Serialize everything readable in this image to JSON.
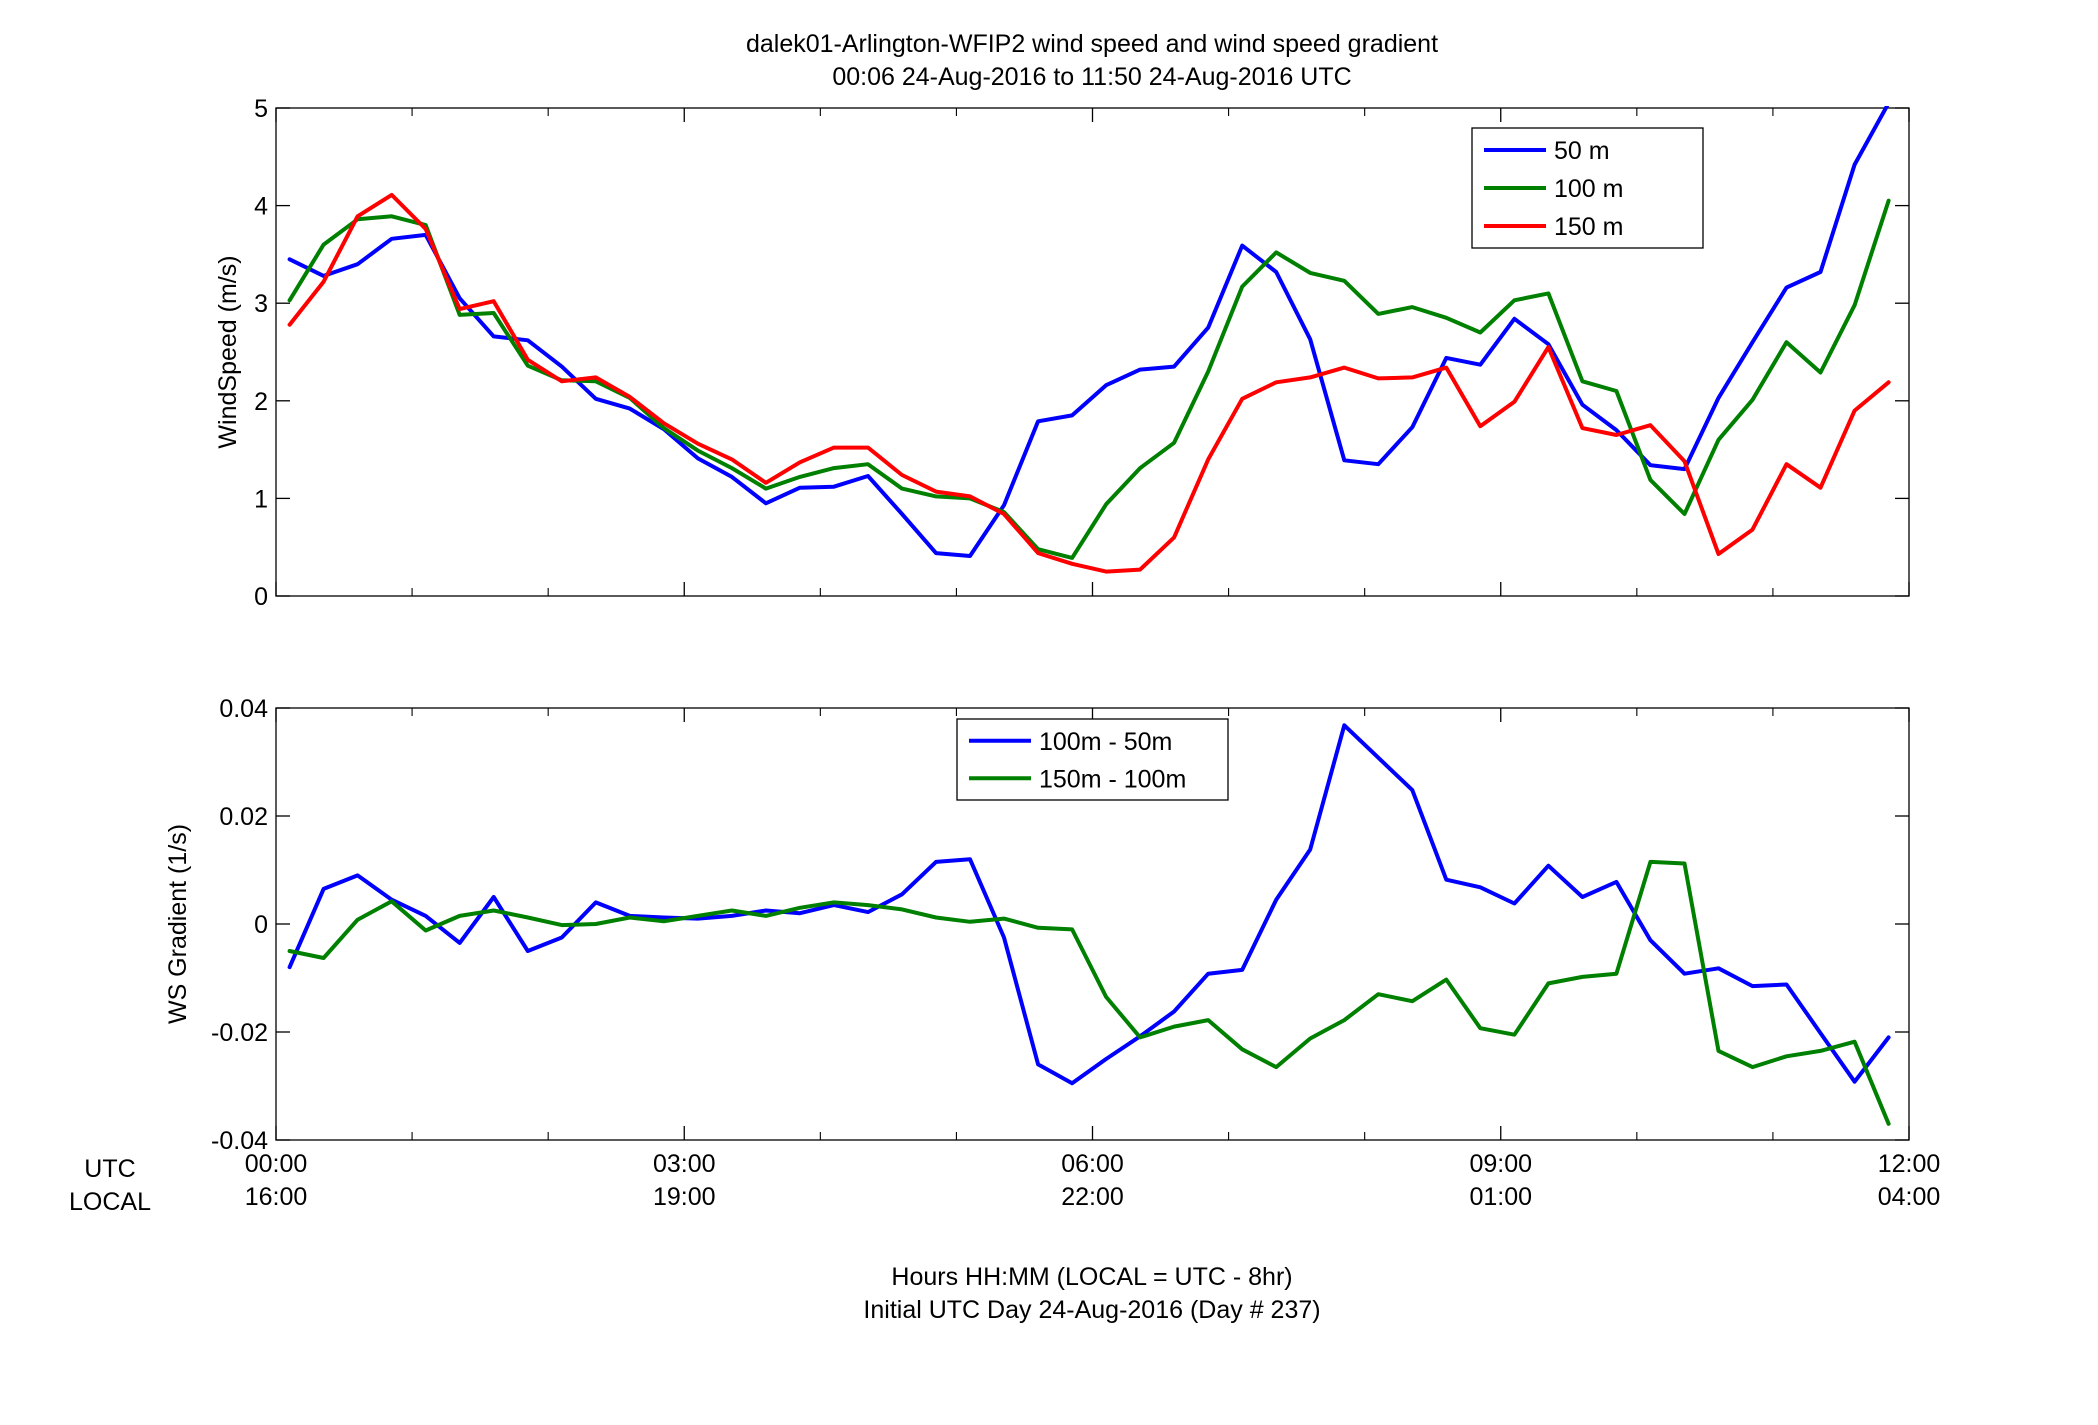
{
  "title": {
    "line1": "dalek01-Arlington-WFIP2  wind speed and wind speed gradient",
    "line2": "00:06 24-Aug-2016 to 11:50 24-Aug-2016  UTC"
  },
  "footer": {
    "row_label_utc": "UTC",
    "row_label_local": "LOCAL",
    "line1": "Hours HH:MM  (LOCAL = UTC - 8hr)",
    "line2": "Initial UTC Day 24-Aug-2016 (Day # 237)"
  },
  "x_ticks": [
    {
      "hour": 0,
      "utc": "00:00",
      "local": "16:00"
    },
    {
      "hour": 3,
      "utc": "03:00",
      "local": "19:00"
    },
    {
      "hour": 6,
      "utc": "06:00",
      "local": "22:00"
    },
    {
      "hour": 9,
      "utc": "09:00",
      "local": "01:00"
    },
    {
      "hour": 12,
      "utc": "12:00",
      "local": "04:00"
    }
  ],
  "chart_data": [
    {
      "type": "line",
      "ylabel": "WindSpeed (m/s)",
      "xlim": [
        0,
        12
      ],
      "ylim": [
        0,
        5
      ],
      "yticks": [
        0,
        1,
        2,
        3,
        4,
        5
      ],
      "ytick_labels": [
        "0",
        "1",
        "2",
        "3",
        "4",
        "5"
      ],
      "legend_position": "top-right",
      "x": [
        0.1,
        0.35,
        0.6,
        0.85,
        1.1,
        1.35,
        1.6,
        1.85,
        2.1,
        2.35,
        2.6,
        2.85,
        3.1,
        3.35,
        3.6,
        3.85,
        4.1,
        4.35,
        4.6,
        4.85,
        5.1,
        5.35,
        5.6,
        5.85,
        6.1,
        6.35,
        6.6,
        6.85,
        7.1,
        7.35,
        7.6,
        7.85,
        8.1,
        8.35,
        8.6,
        8.85,
        9.1,
        9.35,
        9.6,
        9.85,
        10.1,
        10.35,
        10.6,
        10.85,
        11.1,
        11.35,
        11.6,
        11.85
      ],
      "series": [
        {
          "name": "50 m",
          "color": "#0000ff",
          "values": [
            3.45,
            3.28,
            3.4,
            3.66,
            3.7,
            3.05,
            2.66,
            2.62,
            2.35,
            2.02,
            1.92,
            1.71,
            1.41,
            1.22,
            0.95,
            1.11,
            1.12,
            1.23,
            0.84,
            0.44,
            0.41,
            0.93,
            1.79,
            1.85,
            2.16,
            2.32,
            2.35,
            2.75,
            3.59,
            3.32,
            2.63,
            1.39,
            1.35,
            1.73,
            2.44,
            2.37,
            2.84,
            2.58,
            1.96,
            1.7,
            1.34,
            1.3,
            2.03,
            2.6,
            3.16,
            3.32,
            4.42,
            5.05
          ]
        },
        {
          "name": "100 m",
          "color": "#008000",
          "values": [
            3.03,
            3.6,
            3.86,
            3.89,
            3.8,
            2.88,
            2.9,
            2.36,
            2.21,
            2.2,
            2.03,
            1.72,
            1.49,
            1.31,
            1.1,
            1.22,
            1.31,
            1.35,
            1.1,
            1.02,
            1.0,
            0.86,
            0.48,
            0.39,
            0.94,
            1.31,
            1.57,
            2.3,
            3.17,
            3.52,
            3.31,
            3.23,
            2.89,
            2.96,
            2.85,
            2.7,
            3.03,
            3.1,
            2.2,
            2.1,
            1.19,
            0.84,
            1.6,
            2.01,
            2.6,
            2.29,
            2.98,
            4.05
          ]
        },
        {
          "name": "150 m",
          "color": "#ff0000",
          "values": [
            2.78,
            3.22,
            3.89,
            4.11,
            3.76,
            2.94,
            3.02,
            2.42,
            2.2,
            2.24,
            2.04,
            1.77,
            1.56,
            1.4,
            1.16,
            1.37,
            1.52,
            1.52,
            1.24,
            1.07,
            1.02,
            0.84,
            0.44,
            0.33,
            0.25,
            0.27,
            0.6,
            1.4,
            2.02,
            2.19,
            2.24,
            2.34,
            2.23,
            2.24,
            2.34,
            1.74,
            1.99,
            2.55,
            1.72,
            1.65,
            1.75,
            1.38,
            0.43,
            0.68,
            1.35,
            1.11,
            1.9,
            2.19
          ]
        }
      ]
    },
    {
      "type": "line",
      "ylabel": "WS Gradient (1/s)",
      "xlim": [
        0,
        12
      ],
      "ylim": [
        -0.04,
        0.04
      ],
      "yticks": [
        -0.04,
        -0.02,
        0,
        0.02,
        0.04
      ],
      "ytick_labels": [
        "-0.04",
        "-0.02",
        "0",
        "0.02",
        "0.04"
      ],
      "legend_position": "top-center",
      "x": [
        0.1,
        0.35,
        0.6,
        0.85,
        1.1,
        1.35,
        1.6,
        1.85,
        2.1,
        2.35,
        2.6,
        2.85,
        3.1,
        3.35,
        3.6,
        3.85,
        4.1,
        4.35,
        4.6,
        4.85,
        5.1,
        5.35,
        5.6,
        5.85,
        6.1,
        6.35,
        6.6,
        6.85,
        7.1,
        7.35,
        7.6,
        7.85,
        8.1,
        8.35,
        8.6,
        8.85,
        9.1,
        9.35,
        9.6,
        9.85,
        10.1,
        10.35,
        10.6,
        10.85,
        11.1,
        11.35,
        11.6,
        11.85
      ],
      "series": [
        {
          "name": "100m - 50m",
          "color": "#0000ff",
          "values": [
            -0.008,
            0.0065,
            0.009,
            0.0045,
            0.0015,
            -0.0035,
            0.005,
            -0.005,
            -0.0025,
            0.004,
            0.0015,
            0.0012,
            0.001,
            0.0015,
            0.0025,
            0.002,
            0.0035,
            0.0022,
            0.0055,
            0.0115,
            0.012,
            -0.0025,
            -0.026,
            -0.0295,
            -0.025,
            -0.0208,
            -0.0162,
            -0.0092,
            -0.0085,
            0.0045,
            0.0138,
            0.0368,
            0.0308,
            0.0248,
            0.0082,
            0.0068,
            0.0038,
            0.0108,
            0.005,
            0.0078,
            -0.003,
            -0.0092,
            -0.0082,
            -0.0115,
            -0.0112,
            -0.0202,
            -0.0292,
            -0.021
          ]
        },
        {
          "name": "150m - 100m",
          "color": "#008000",
          "values": [
            -0.005,
            -0.0063,
            0.0008,
            0.0042,
            -0.0012,
            0.0015,
            0.0025,
            0.0012,
            -0.0002,
            0.0,
            0.0012,
            0.0005,
            0.0015,
            0.0025,
            0.0015,
            0.003,
            0.004,
            0.0035,
            0.0027,
            0.0012,
            0.0004,
            0.001,
            -0.0007,
            -0.001,
            -0.0135,
            -0.021,
            -0.019,
            -0.0178,
            -0.0232,
            -0.0265,
            -0.0212,
            -0.0178,
            -0.013,
            -0.0143,
            -0.0103,
            -0.0193,
            -0.0205,
            -0.011,
            -0.0098,
            -0.0092,
            0.0115,
            0.0112,
            -0.0235,
            -0.0265,
            -0.0245,
            -0.0235,
            -0.0218,
            -0.037
          ]
        }
      ]
    }
  ]
}
